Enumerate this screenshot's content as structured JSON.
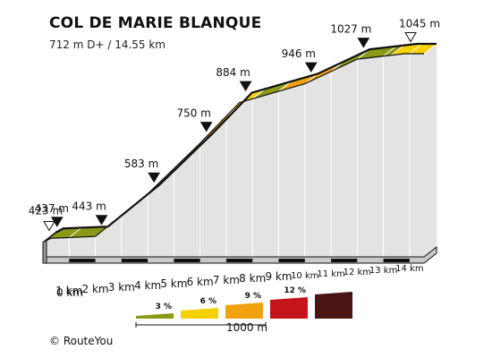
{
  "header": {
    "title": "COL DE MARIE BLANQUE",
    "subtitle": "712 m D+ / 14.55 km"
  },
  "footer": {
    "credit": "© RouteYou"
  },
  "colors": {
    "lt3": "#8a9a16",
    "lt6": "#f7d000",
    "lt9": "#f0a20f",
    "lt12": "#c4151c",
    "gt12": "#4a1414",
    "side": "#e5e2e2",
    "ground": "#c9c9c9",
    "outline": "#111111"
  },
  "chart_data": {
    "type": "area",
    "x_unit": "km",
    "y_unit": "m",
    "x_tick_labels": [
      "0 km",
      "1 km",
      "2 km",
      "3 km",
      "4 km",
      "5 km",
      "6 km",
      "7 km",
      "8 km",
      "9 km",
      "10 km",
      "11 km",
      "12 km",
      "13 km",
      "14 km"
    ],
    "profile": [
      {
        "km": 0,
        "elev": 423
      },
      {
        "km": 0.3,
        "elev": 437
      },
      {
        "km": 2,
        "elev": 443
      },
      {
        "km": 4,
        "elev": 583
      },
      {
        "km": 6,
        "elev": 750
      },
      {
        "km": 7.5,
        "elev": 884
      },
      {
        "km": 10,
        "elev": 946
      },
      {
        "km": 12,
        "elev": 1027
      },
      {
        "km": 13.8,
        "elev": 1045
      },
      {
        "km": 14.55,
        "elev": 1045
      }
    ],
    "segments": [
      {
        "from": 0,
        "to": 2,
        "class": "lt3"
      },
      {
        "from": 2,
        "to": 3,
        "class": "lt6"
      },
      {
        "from": 3,
        "to": 7,
        "class": "lt9"
      },
      {
        "from": 7,
        "to": 8,
        "class": "lt6"
      },
      {
        "from": 8,
        "to": 9,
        "class": "lt3"
      },
      {
        "from": 9,
        "to": 11,
        "class": "lt9"
      },
      {
        "from": 11,
        "to": 13.3,
        "class": "lt3"
      },
      {
        "from": 13.3,
        "to": 14.55,
        "class": "lt6"
      }
    ],
    "markers": [
      {
        "km": 0,
        "elev": 423,
        "label": "423 m",
        "style": "open"
      },
      {
        "km": 0.3,
        "elev": 437,
        "label": "437 m",
        "style": "filled"
      },
      {
        "km": 2,
        "elev": 443,
        "label": "443 m",
        "style": "filled"
      },
      {
        "km": 4,
        "elev": 583,
        "label": "583 m",
        "style": "filled"
      },
      {
        "km": 6,
        "elev": 750,
        "label": "750 m",
        "style": "filled"
      },
      {
        "km": 7.5,
        "elev": 884,
        "label": "884 m",
        "style": "filled"
      },
      {
        "km": 10,
        "elev": 946,
        "label": "946 m",
        "style": "filled"
      },
      {
        "km": 12,
        "elev": 1027,
        "label": "1027 m",
        "style": "filled"
      },
      {
        "km": 13.8,
        "elev": 1045,
        "label": "1045 m",
        "style": "open"
      }
    ],
    "legend": {
      "items": [
        {
          "label": "3 %",
          "class": "lt3"
        },
        {
          "label": "6 %",
          "class": "lt6"
        },
        {
          "label": "9 %",
          "class": "lt9"
        },
        {
          "label": "12 %",
          "class": "lt12"
        },
        {
          "label": "",
          "class": "gt12"
        }
      ],
      "scale_label": "1000 m"
    }
  }
}
